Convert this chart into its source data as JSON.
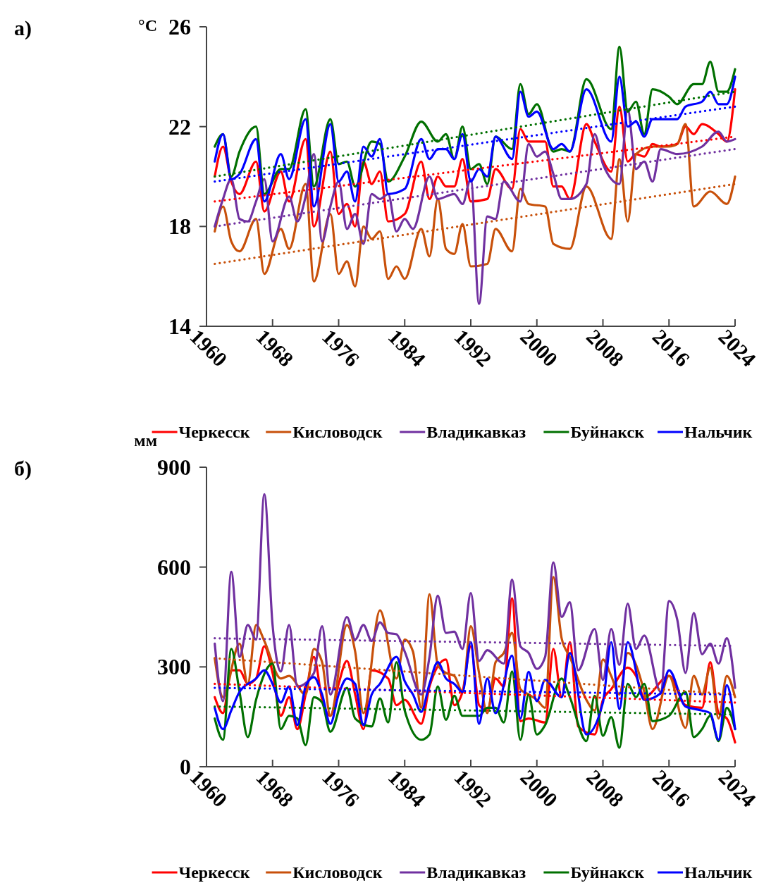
{
  "chart_data": [
    {
      "type": "line",
      "annotations": [
        "а)"
      ],
      "ylabel": "°C",
      "xlim": [
        1960,
        2024
      ],
      "xticks": [
        1960,
        1968,
        1976,
        1984,
        1992,
        2000,
        2008,
        2016,
        2024
      ],
      "ylim": [
        14,
        26
      ],
      "yticks": [
        14,
        18,
        22,
        26
      ],
      "legend": "bottom",
      "series": [
        {
          "name": "Черкесск",
          "color": "#ff0000",
          "x": [
            1961,
            1962,
            1963,
            1964,
            1966,
            1967,
            1969,
            1970,
            1972,
            1973,
            1975,
            1976,
            1977,
            1978,
            1979,
            1980,
            1981,
            1982,
            1984,
            1986,
            1987,
            1988,
            1989,
            1990,
            1991,
            1992,
            1994,
            1995,
            1997,
            1998,
            1999,
            2001,
            2002,
            2003,
            2004,
            2006,
            2007,
            2009,
            2010,
            2011,
            2012,
            2013,
            2014,
            2015,
            2017,
            2018,
            2019,
            2020,
            2022,
            2023,
            2024
          ],
          "values": [
            20.0,
            21.2,
            19.8,
            19.3,
            20.6,
            18.6,
            20.2,
            19.0,
            21.5,
            18.0,
            21.0,
            18.5,
            18.9,
            18.0,
            20.6,
            19.7,
            20.2,
            18.2,
            18.5,
            20.6,
            19.1,
            20.0,
            19.6,
            19.6,
            20.7,
            19.0,
            19.1,
            20.3,
            19.5,
            21.9,
            21.4,
            21.4,
            19.6,
            19.6,
            19.1,
            22.1,
            21.4,
            20.2,
            22.8,
            20.6,
            20.9,
            20.8,
            21.3,
            21.2,
            21.3,
            22.0,
            21.7,
            22.1,
            21.7,
            21.4,
            23.5
          ]
        },
        {
          "name": "Кисловодск",
          "color": "#c8500a",
          "x": [
            1961,
            1962,
            1963,
            1964,
            1966,
            1967,
            1969,
            1970,
            1972,
            1973,
            1975,
            1976,
            1977,
            1978,
            1979,
            1980,
            1981,
            1982,
            1983,
            1984,
            1986,
            1987,
            1988,
            1989,
            1990,
            1991,
            1992,
            1994,
            1995,
            1997,
            1998,
            1999,
            2001,
            2002,
            2004,
            2006,
            2009,
            2010,
            2011,
            2012,
            2014,
            2016,
            2017,
            2018,
            2019,
            2021,
            2023,
            2024
          ],
          "values": [
            17.8,
            18.8,
            17.4,
            17.0,
            18.3,
            16.1,
            17.9,
            17.1,
            19.7,
            15.8,
            18.5,
            16.1,
            16.6,
            15.6,
            18.0,
            17.5,
            17.8,
            15.9,
            16.4,
            15.9,
            17.9,
            16.8,
            19.1,
            17.1,
            16.9,
            18.1,
            16.4,
            16.5,
            17.9,
            17.0,
            19.5,
            18.9,
            18.8,
            17.3,
            17.1,
            19.6,
            17.5,
            20.7,
            18.2,
            20.9,
            21.2,
            21.2,
            21.3,
            22.1,
            18.8,
            19.4,
            18.9,
            20.0
          ]
        },
        {
          "name": "Владикавказ",
          "color": "#7030a0",
          "x": [
            1961,
            1962,
            1963,
            1964,
            1965,
            1966,
            1967,
            1968,
            1970,
            1971,
            1972,
            1973,
            1974,
            1975,
            1976,
            1977,
            1978,
            1979,
            1980,
            1981,
            1982,
            1983,
            1984,
            1985,
            1987,
            1988,
            1990,
            1991,
            1992,
            1993,
            1994,
            1995,
            1996,
            1998,
            1999,
            2000,
            2001,
            2002,
            2003,
            2004,
            2006,
            2007,
            2008,
            2010,
            2011,
            2012,
            2013,
            2014,
            2015,
            2017,
            2020,
            2022,
            2023,
            2024
          ],
          "values": [
            18.0,
            19.1,
            19.9,
            18.3,
            18.2,
            19.0,
            19.9,
            17.4,
            19.2,
            18.2,
            19.2,
            20.9,
            17.4,
            18.8,
            19.8,
            17.9,
            18.5,
            17.3,
            19.3,
            19.1,
            19.3,
            17.8,
            18.3,
            17.9,
            20.0,
            19.1,
            19.3,
            18.9,
            19.9,
            14.9,
            18.4,
            18.3,
            19.8,
            19.0,
            21.3,
            20.8,
            21.0,
            20.1,
            19.1,
            19.1,
            19.7,
            21.7,
            20.5,
            19.7,
            22.7,
            20.3,
            20.6,
            19.8,
            21.1,
            20.9,
            21.2,
            21.8,
            21.4,
            21.5
          ]
        },
        {
          "name": "Буйнакск",
          "color": "#007000",
          "x": [
            1961,
            1962,
            1963,
            1964,
            1966,
            1967,
            1969,
            1970,
            1972,
            1973,
            1975,
            1976,
            1977,
            1978,
            1980,
            1981,
            1982,
            1984,
            1986,
            1988,
            1989,
            1990,
            1991,
            1992,
            1993,
            1994,
            1995,
            1997,
            1998,
            1999,
            2000,
            2002,
            2003,
            2004,
            2006,
            2009,
            2010,
            2011,
            2012,
            2013,
            2014,
            2016,
            2017,
            2019,
            2020,
            2021,
            2022,
            2023,
            2024
          ],
          "values": [
            21.2,
            21.7,
            20.0,
            21.0,
            22.0,
            19.3,
            20.3,
            20.3,
            22.7,
            19.6,
            22.3,
            20.5,
            20.6,
            19.6,
            21.4,
            21.3,
            19.8,
            20.8,
            22.2,
            21.4,
            21.7,
            20.7,
            22.0,
            20.3,
            20.5,
            19.7,
            21.6,
            21.1,
            23.7,
            22.5,
            22.9,
            21.0,
            21.1,
            21.0,
            23.9,
            21.9,
            25.2,
            22.6,
            23.0,
            21.7,
            23.5,
            23.2,
            22.9,
            23.7,
            23.7,
            24.6,
            23.4,
            23.4,
            24.3
          ]
        },
        {
          "name": "Нальчик",
          "color": "#0000ff",
          "x": [
            1961,
            1962,
            1963,
            1964,
            1966,
            1967,
            1969,
            1970,
            1972,
            1973,
            1975,
            1976,
            1977,
            1978,
            1979,
            1980,
            1981,
            1982,
            1984,
            1986,
            1987,
            1988,
            1989,
            1990,
            1991,
            1992,
            1993,
            1994,
            1995,
            1997,
            1998,
            1999,
            2000,
            2002,
            2003,
            2004,
            2006,
            2009,
            2010,
            2011,
            2012,
            2013,
            2014,
            2017,
            2018,
            2020,
            2021,
            2022,
            2023,
            2024
          ],
          "values": [
            20.6,
            21.7,
            19.9,
            20.1,
            21.5,
            19.0,
            20.9,
            19.9,
            22.3,
            18.8,
            22.1,
            19.8,
            20.2,
            19.0,
            21.2,
            20.8,
            21.5,
            19.3,
            19.5,
            21.5,
            20.7,
            21.1,
            21.1,
            20.7,
            21.7,
            19.8,
            20.3,
            20.0,
            21.6,
            20.7,
            23.4,
            22.4,
            22.6,
            21.1,
            21.3,
            21.0,
            23.5,
            21.4,
            24.0,
            22.0,
            22.2,
            21.6,
            22.3,
            22.3,
            22.8,
            23.0,
            23.4,
            22.9,
            22.9,
            24.0
          ]
        },
        {
          "color": "#ff0000",
          "line_style": "dotted",
          "x": [
            1961,
            2024
          ],
          "values": [
            19.0,
            21.6
          ]
        },
        {
          "color": "#c8500a",
          "line_style": "dotted",
          "x": [
            1961,
            2024
          ],
          "values": [
            16.5,
            19.7
          ]
        },
        {
          "color": "#7030a0",
          "line_style": "dotted",
          "x": [
            1961,
            2024
          ],
          "values": [
            18.0,
            21.1
          ]
        },
        {
          "color": "#007000",
          "line_style": "dotted",
          "x": [
            1961,
            2024
          ],
          "values": [
            20.0,
            23.4
          ]
        },
        {
          "color": "#0000ff",
          "line_style": "dotted",
          "x": [
            1961,
            2024
          ],
          "values": [
            19.8,
            22.8
          ]
        }
      ]
    },
    {
      "type": "line",
      "annotations": [
        "б)"
      ],
      "ylabel": "мм",
      "xlim": [
        1960,
        2024
      ],
      "xticks": [
        1960,
        1968,
        1976,
        1984,
        1992,
        2000,
        2008,
        2016,
        2024
      ],
      "ylim": [
        0,
        900
      ],
      "yticks": [
        0,
        300,
        600,
        900
      ],
      "legend": "bottom",
      "series": [
        {
          "name": "Черкесск",
          "color": "#ff0000",
          "x": [
            1961,
            1962,
            1963,
            1964,
            1965,
            1966,
            1967,
            1968,
            1969,
            1970,
            1971,
            1972,
            1973,
            1974,
            1975,
            1976,
            1977,
            1978,
            1979,
            1980,
            1982,
            1983,
            1984,
            1986,
            1987,
            1989,
            1990,
            1991,
            1992,
            1993,
            1994,
            1995,
            1996,
            1997,
            1998,
            1999,
            2001,
            2002,
            2003,
            2004,
            2005,
            2007,
            2008,
            2009,
            2011,
            2012,
            2013,
            2016,
            2018,
            2020,
            2021,
            2022,
            2023,
            2024
          ],
          "values": [
            209,
            161,
            290,
            290,
            249,
            265,
            362,
            282,
            153,
            209,
            113,
            217,
            330,
            201,
            153,
            249,
            318,
            217,
            113,
            290,
            265,
            185,
            201,
            129,
            241,
            322,
            185,
            225,
            362,
            185,
            169,
            265,
            241,
            506,
            137,
            145,
            133,
            354,
            209,
            374,
            121,
            97,
            201,
            233,
            298,
            273,
            209,
            273,
            185,
            177,
            314,
            161,
            145,
            73
          ]
        },
        {
          "name": "Кисловодск",
          "color": "#c8500a",
          "x": [
            1961,
            1962,
            1964,
            1965,
            1966,
            1967,
            1969,
            1970,
            1972,
            1973,
            1974,
            1975,
            1977,
            1978,
            1979,
            1981,
            1983,
            1984,
            1985,
            1986,
            1987,
            1988,
            1989,
            1990,
            1991,
            1992,
            1993,
            1994,
            1995,
            1996,
            1997,
            1998,
            1999,
            2000,
            2001,
            2002,
            2003,
            2004,
            2006,
            2007,
            2008,
            2009,
            2010,
            2011,
            2013,
            2014,
            2016,
            2018,
            2019,
            2020,
            2021,
            2022,
            2023,
            2024
          ],
          "values": [
            326,
            209,
            370,
            249,
            426,
            378,
            265,
            273,
            217,
            354,
            314,
            153,
            426,
            346,
            161,
            470,
            265,
            382,
            346,
            177,
            518,
            306,
            282,
            273,
            225,
            422,
            282,
            161,
            314,
            342,
            402,
            233,
            217,
            201,
            177,
            570,
            386,
            330,
            201,
            169,
            322,
            273,
            217,
            342,
            225,
            113,
            273,
            117,
            273,
            217,
            298,
            145,
            273,
            209
          ]
        },
        {
          "name": "Владикавказ",
          "color": "#7030a0",
          "x": [
            1961,
            1962,
            1963,
            1964,
            1965,
            1966,
            1967,
            1968,
            1969,
            1970,
            1971,
            1973,
            1974,
            1975,
            1977,
            1978,
            1979,
            1980,
            1981,
            1982,
            1983,
            1984,
            1986,
            1987,
            1988,
            1989,
            1990,
            1991,
            1992,
            1993,
            1994,
            1996,
            1997,
            1998,
            1999,
            2000,
            2001,
            2002,
            2003,
            2004,
            2005,
            2007,
            2008,
            2009,
            2010,
            2011,
            2012,
            2013,
            2015,
            2016,
            2017,
            2018,
            2019,
            2020,
            2021,
            2022,
            2023,
            2024
          ],
          "values": [
            370,
            197,
            586,
            330,
            426,
            382,
            819,
            426,
            286,
            426,
            241,
            281,
            422,
            217,
            450,
            382,
            426,
            378,
            434,
            402,
            398,
            346,
            217,
            330,
            514,
            402,
            406,
            354,
            522,
            318,
            350,
            310,
            562,
            362,
            342,
            294,
            330,
            614,
            450,
            494,
            290,
            414,
            261,
            414,
            306,
            490,
            354,
            394,
            225,
            498,
            442,
            282,
            462,
            338,
            370,
            310,
            386,
            237
          ]
        },
        {
          "name": "Буйнакск",
          "color": "#007000",
          "x": [
            1961,
            1962,
            1963,
            1964,
            1965,
            1966,
            1968,
            1969,
            1970,
            1971,
            1972,
            1973,
            1974,
            1975,
            1977,
            1978,
            1980,
            1981,
            1982,
            1983,
            1984,
            1986,
            1987,
            1988,
            1989,
            1990,
            1991,
            1992,
            1993,
            1994,
            1995,
            1996,
            1997,
            1998,
            1999,
            2000,
            2001,
            2003,
            2004,
            2006,
            2007,
            2008,
            2009,
            2010,
            2011,
            2012,
            2013,
            2014,
            2016,
            2018,
            2019,
            2020,
            2021,
            2022,
            2023,
            2024
          ],
          "values": [
            145,
            81,
            354,
            225,
            89,
            201,
            310,
            113,
            153,
            145,
            65,
            209,
            193,
            105,
            237,
            145,
            121,
            205,
            133,
            314,
            169,
            81,
            97,
            241,
            141,
            213,
            153,
            153,
            153,
            177,
            177,
            133,
            286,
            81,
            217,
            97,
            125,
            265,
            209,
            77,
            213,
            93,
            149,
            57,
            249,
            209,
            249,
            137,
            153,
            225,
            89,
            113,
            153,
            77,
            177,
            113
          ]
        },
        {
          "name": "Нальчик",
          "color": "#0000ff",
          "x": [
            1961,
            1962,
            1963,
            1964,
            1966,
            1967,
            1968,
            1969,
            1970,
            1971,
            1972,
            1973,
            1974,
            1975,
            1976,
            1977,
            1978,
            1979,
            1980,
            1981,
            1983,
            1984,
            1985,
            1986,
            1987,
            1988,
            1989,
            1990,
            1991,
            1992,
            1993,
            1994,
            1995,
            1997,
            1998,
            1999,
            2000,
            2001,
            2003,
            2004,
            2006,
            2008,
            2009,
            2010,
            2011,
            2013,
            2015,
            2016,
            2018,
            2020,
            2021,
            2022,
            2023,
            2024
          ],
          "values": [
            177,
            113,
            169,
            225,
            265,
            290,
            249,
            193,
            241,
            125,
            241,
            269,
            217,
            129,
            217,
            265,
            249,
            125,
            217,
            249,
            330,
            257,
            217,
            165,
            249,
            314,
            265,
            249,
            225,
            374,
            129,
            265,
            161,
            334,
            145,
            285,
            197,
            261,
            209,
            342,
            97,
            193,
            374,
            173,
            374,
            201,
            221,
            290,
            181,
            169,
            161,
            81,
            245,
            113
          ]
        },
        {
          "color": "#ff0000",
          "line_style": "dotted",
          "x": [
            1961,
            2024
          ],
          "values": [
            249,
            193
          ]
        },
        {
          "color": "#c8500a",
          "line_style": "dotted",
          "x": [
            1961,
            2024
          ],
          "values": [
            326,
            217
          ]
        },
        {
          "color": "#7030a0",
          "line_style": "dotted",
          "x": [
            1961,
            2024
          ],
          "values": [
            386,
            363
          ]
        },
        {
          "color": "#007000",
          "line_style": "dotted",
          "x": [
            1961,
            2024
          ],
          "values": [
            181,
            157
          ]
        },
        {
          "color": "#0000ff",
          "line_style": "dotted",
          "x": [
            1961,
            2024
          ],
          "values": [
            237,
            217
          ]
        }
      ]
    }
  ]
}
